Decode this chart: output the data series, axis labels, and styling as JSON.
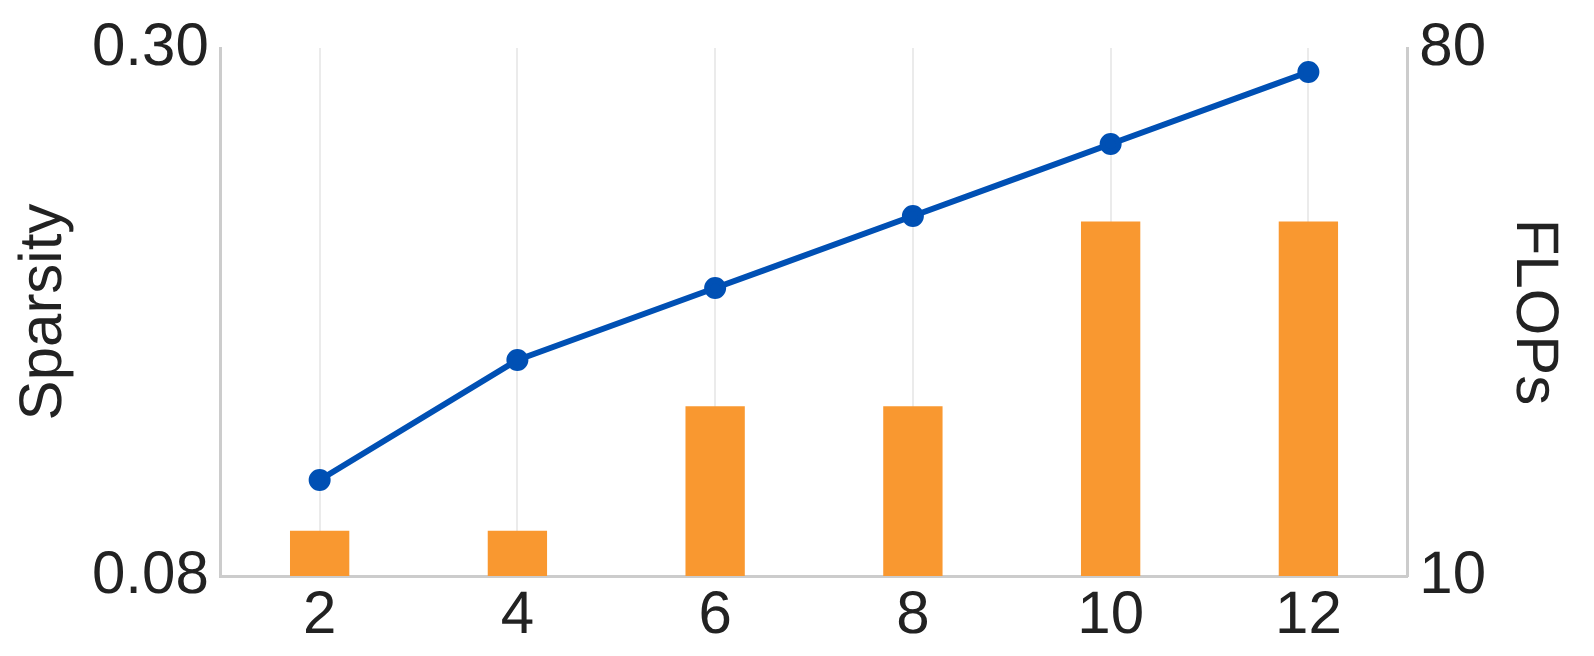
{
  "chart_data": {
    "type": "bar",
    "categories": [
      "2",
      "4",
      "6",
      "8",
      "10",
      "12"
    ],
    "ylabel": "Sparsity",
    "y2label": "FLOPs",
    "ylim": [
      0.08,
      0.3
    ],
    "yticks": [
      {
        "value": 0.08,
        "label": "0.08"
      },
      {
        "value": 0.3,
        "label": "0.30"
      }
    ],
    "y2lim": [
      10,
      80
    ],
    "y2ticks": [
      10,
      80
    ],
    "grid": "x",
    "legend": false,
    "marker": "circle",
    "line_style": "solid",
    "series": [
      {
        "axis": "y2",
        "color": "#f99830",
        "values": [
          16,
          16,
          32.5,
          32.5,
          57,
          57
        ]
      },
      {
        "type": "line",
        "axis": "y",
        "color": "#0050b4",
        "values": [
          0.12,
          0.17,
          0.2,
          0.23,
          0.26,
          0.29
        ]
      }
    ]
  }
}
